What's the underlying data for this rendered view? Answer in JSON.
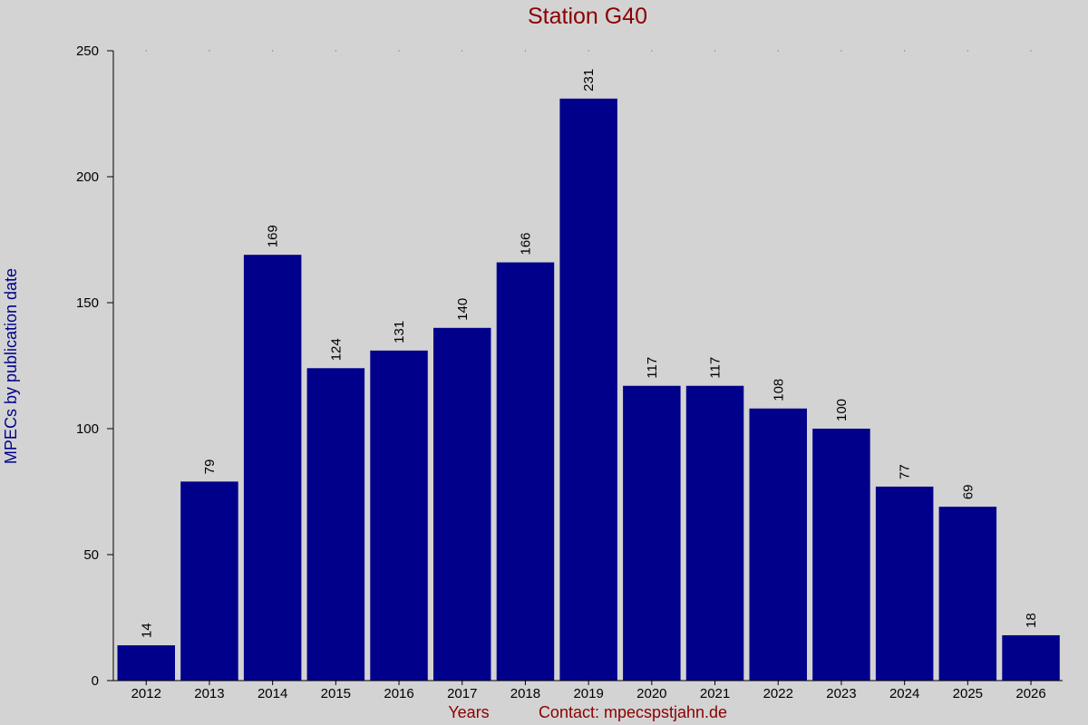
{
  "chart_data": {
    "type": "bar",
    "title": "Station G40",
    "xlabel": "Years",
    "credit": "Contact: mpecspstjahn.de",
    "ylabel": "MPECs by publication date",
    "categories": [
      "2012",
      "2013",
      "2014",
      "2015",
      "2016",
      "2017",
      "2018",
      "2019",
      "2020",
      "2021",
      "2022",
      "2023",
      "2024",
      "2025",
      "2026"
    ],
    "values": [
      14,
      79,
      169,
      124,
      131,
      140,
      166,
      231,
      117,
      117,
      108,
      100,
      77,
      69,
      18
    ],
    "ylim": [
      0,
      250
    ],
    "yticks": [
      0,
      50,
      100,
      150,
      200,
      250
    ],
    "data_labels": true,
    "colors": {
      "background": "#d3d3d3",
      "bar": "#00008b",
      "title": "#8b0000",
      "xlabel": "#8b0000",
      "ylabel": "#00008b",
      "axis": "#000000",
      "text": "#000000"
    }
  }
}
